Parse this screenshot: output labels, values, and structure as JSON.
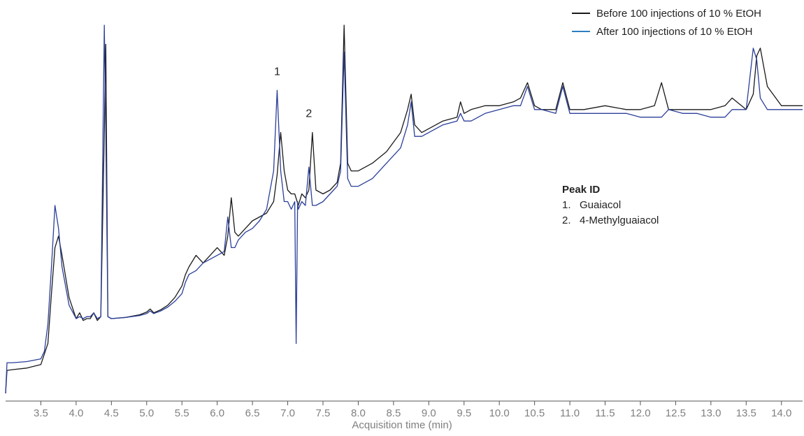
{
  "chart_data": {
    "type": "line",
    "title": "",
    "xlabel": "Acquisition time (min)",
    "ylabel": "",
    "xlim": [
      3.0,
      14.3
    ],
    "ylim": [
      0,
      100
    ],
    "xticks": [
      3.5,
      4.0,
      4.5,
      5.0,
      5.5,
      6.0,
      6.5,
      7.0,
      7.5,
      8.0,
      8.5,
      9.0,
      9.5,
      10.0,
      10.5,
      11.0,
      11.5,
      12.0,
      12.5,
      13.0,
      13.5,
      14.0
    ],
    "xtick_labels": [
      "3.5",
      "4.0",
      "4.5",
      "5.0",
      "5.5",
      "6.0",
      "6.5",
      "7.0",
      "7.5",
      "8.0",
      "8.5",
      "9.0",
      "9.5",
      "10.0",
      "10.5",
      "11.0",
      "11.5",
      "12.0",
      "12.5",
      "13.0",
      "13.5",
      "14.0"
    ],
    "grid": false,
    "legend_position": "top-right",
    "series": [
      {
        "name": "Before 100 injections of 10 % EtOH",
        "color": "#1a1a1a",
        "x": [
          3.0,
          3.02,
          3.1,
          3.3,
          3.5,
          3.6,
          3.65,
          3.7,
          3.75,
          3.8,
          3.9,
          4.0,
          4.05,
          4.1,
          4.15,
          4.2,
          4.25,
          4.3,
          4.35,
          4.4,
          4.42,
          4.45,
          4.5,
          4.7,
          4.9,
          5.0,
          5.05,
          5.1,
          5.2,
          5.3,
          5.4,
          5.5,
          5.55,
          5.6,
          5.7,
          5.8,
          5.9,
          6.0,
          6.1,
          6.15,
          6.2,
          6.25,
          6.3,
          6.4,
          6.5,
          6.6,
          6.7,
          6.8,
          6.85,
          6.9,
          6.95,
          7.0,
          7.05,
          7.1,
          7.15,
          7.2,
          7.25,
          7.3,
          7.35,
          7.4,
          7.5,
          7.6,
          7.7,
          7.75,
          7.8,
          7.85,
          7.9,
          8.0,
          8.2,
          8.4,
          8.6,
          8.7,
          8.75,
          8.8,
          8.9,
          9.0,
          9.2,
          9.4,
          9.45,
          9.5,
          9.6,
          9.8,
          10.0,
          10.2,
          10.3,
          10.4,
          10.5,
          10.6,
          10.8,
          10.9,
          11.0,
          11.2,
          11.5,
          11.8,
          12.0,
          12.2,
          12.3,
          12.4,
          12.6,
          12.8,
          13.0,
          13.2,
          13.3,
          13.5,
          13.6,
          13.65,
          13.7,
          13.8,
          14.0,
          14.2,
          14.3
        ],
        "values": [
          2,
          8,
          8.2,
          8.6,
          9.5,
          15,
          28,
          40,
          43,
          38,
          27,
          21.5,
          23,
          21,
          21.5,
          21.5,
          23,
          21,
          22,
          70,
          93,
          22,
          21.5,
          21.8,
          22.5,
          23.2,
          24,
          23,
          23.8,
          25,
          27,
          30,
          33,
          35,
          38,
          36,
          38,
          40,
          38,
          43,
          53,
          44,
          43,
          45,
          47,
          48,
          49,
          52,
          59,
          70,
          60,
          55,
          54,
          54,
          51,
          54,
          53,
          55,
          70,
          55,
          54,
          55,
          57,
          62,
          98,
          62,
          60,
          60,
          62,
          65,
          70,
          76,
          80,
          72,
          70,
          71,
          73,
          74,
          78,
          75,
          76,
          77,
          77,
          78,
          79,
          83,
          77,
          76,
          76,
          83,
          76,
          76,
          77,
          76,
          76,
          77,
          83,
          76,
          76,
          76,
          76,
          77,
          79,
          76,
          80,
          90,
          92,
          82,
          77,
          77,
          77
        ]
      },
      {
        "name": "After 100 injections of 10 % EtOH",
        "color": "#2b3f9a",
        "x": [
          3.0,
          3.02,
          3.1,
          3.3,
          3.5,
          3.55,
          3.6,
          3.65,
          3.7,
          3.75,
          3.8,
          3.9,
          4.0,
          4.05,
          4.1,
          4.15,
          4.2,
          4.25,
          4.3,
          4.35,
          4.4,
          4.42,
          4.45,
          4.5,
          4.7,
          4.9,
          5.0,
          5.05,
          5.1,
          5.2,
          5.3,
          5.4,
          5.5,
          5.55,
          5.6,
          5.7,
          5.8,
          5.9,
          6.0,
          6.1,
          6.15,
          6.2,
          6.25,
          6.3,
          6.4,
          6.5,
          6.6,
          6.7,
          6.8,
          6.85,
          6.9,
          6.95,
          7.0,
          7.05,
          7.1,
          7.12,
          7.14,
          7.15,
          7.2,
          7.25,
          7.3,
          7.35,
          7.4,
          7.5,
          7.6,
          7.7,
          7.75,
          7.8,
          7.85,
          7.9,
          8.0,
          8.2,
          8.4,
          8.6,
          8.7,
          8.75,
          8.8,
          8.9,
          9.0,
          9.2,
          9.4,
          9.45,
          9.5,
          9.6,
          9.8,
          10.0,
          10.2,
          10.3,
          10.4,
          10.5,
          10.6,
          10.8,
          10.9,
          11.0,
          11.2,
          11.5,
          11.8,
          12.0,
          12.2,
          12.3,
          12.4,
          12.6,
          12.8,
          13.0,
          13.2,
          13.3,
          13.5,
          13.6,
          13.65,
          13.7,
          13.8,
          14.0,
          14.2,
          14.3
        ],
        "values": [
          2,
          10,
          10,
          10.3,
          11,
          13,
          20,
          35,
          51,
          45,
          35,
          25,
          21.5,
          22,
          21.5,
          22,
          22,
          23,
          21.5,
          22,
          98,
          70,
          22,
          21.5,
          21.8,
          22.3,
          22.8,
          23.5,
          22.8,
          23.5,
          24.5,
          26,
          28,
          31,
          33,
          34,
          36,
          37,
          38,
          39,
          48,
          40,
          40,
          42,
          44,
          45,
          47,
          50,
          60,
          81,
          60,
          52,
          52,
          50,
          52,
          15,
          52,
          50,
          52,
          51,
          61,
          51,
          51,
          52,
          54,
          56,
          60,
          91,
          58,
          56,
          56,
          58,
          62,
          66,
          72,
          78,
          69,
          69,
          70,
          72,
          73,
          75,
          73,
          73,
          75,
          76,
          77,
          77,
          82,
          76,
          76,
          75,
          82,
          75,
          75,
          75,
          75,
          74,
          74,
          74,
          76,
          75,
          75,
          74,
          74,
          76,
          76,
          92,
          89,
          79,
          76,
          76,
          76,
          76
        ]
      }
    ],
    "annotations": [
      {
        "label": "1",
        "x": 6.85,
        "y": 85
      },
      {
        "label": "2",
        "x": 7.3,
        "y": 74
      }
    ]
  },
  "legend": {
    "items": [
      {
        "label": "Before 100 injections of 10 % EtOH",
        "color": "#1a1a1a"
      },
      {
        "label": "After 100 injections of 10 % EtOH",
        "color": "#2e7fc1"
      }
    ]
  },
  "peak_id": {
    "title": "Peak ID",
    "items": [
      {
        "num": "1.",
        "name": "Guaiacol"
      },
      {
        "num": "2.",
        "name": "4-Methylguaiacol"
      }
    ]
  }
}
